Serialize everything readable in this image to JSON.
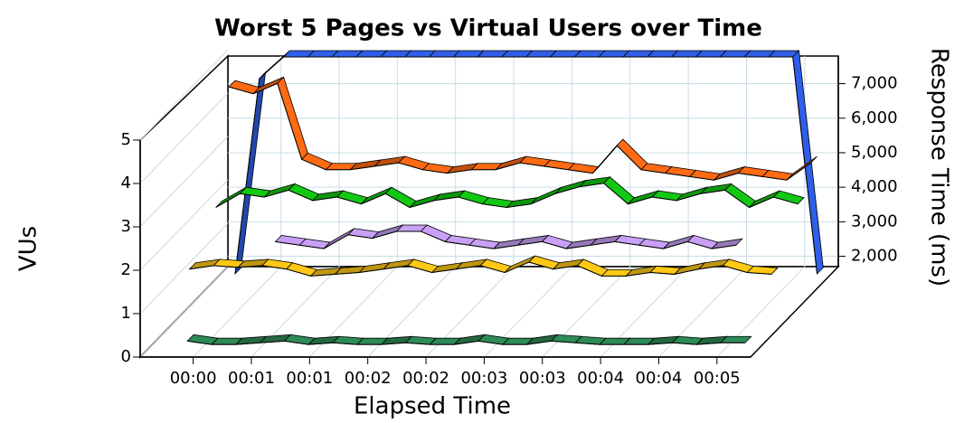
{
  "chart_data": {
    "type": "line",
    "title": "Worst 5 Pages vs Virtual Users over Time",
    "xlabel": "Elapsed Time",
    "ylabel": "VUs",
    "y2label": "Response Time (ms)",
    "x": [
      -20,
      -7.5,
      5,
      17.5,
      30,
      42.5,
      55,
      67.5,
      80,
      92.5,
      105,
      117.5,
      130,
      142.5,
      155,
      167.5,
      180,
      192.5,
      205,
      217.5,
      230,
      242.5,
      255,
      267.5,
      280
    ],
    "xlim": [
      -25,
      285
    ],
    "xticks": [
      {
        "value": 0,
        "label": "00:00"
      },
      {
        "value": 30,
        "label": "00:01"
      },
      {
        "value": 60,
        "label": "00:01"
      },
      {
        "value": 90,
        "label": "00:02"
      },
      {
        "value": 120,
        "label": "00:02"
      },
      {
        "value": 150,
        "label": "00:03"
      },
      {
        "value": 180,
        "label": "00:03"
      },
      {
        "value": 210,
        "label": "00:04"
      },
      {
        "value": 240,
        "label": "00:04"
      },
      {
        "value": 270,
        "label": "00:05"
      }
    ],
    "ylim": [
      0,
      5
    ],
    "yticks": [
      0,
      1,
      2,
      3,
      4,
      5
    ],
    "y2lim": [
      1700,
      7800
    ],
    "y2ticks": [
      {
        "value": 2000,
        "label": "2,000"
      },
      {
        "value": 3000,
        "label": "3,000"
      },
      {
        "value": 4000,
        "label": "4,000"
      },
      {
        "value": 5000,
        "label": "5,000"
      },
      {
        "value": 6000,
        "label": "6,000"
      },
      {
        "value": 7000,
        "label": "7,000"
      }
    ],
    "grid": true,
    "series": [
      {
        "color": "#2f5fe8",
        "axis": "y",
        "values": [
          0,
          4.5,
          5,
          5,
          5,
          5,
          5,
          5,
          5,
          5,
          5,
          5,
          5,
          5,
          5,
          5,
          5,
          5,
          5,
          5,
          5,
          5,
          5,
          5,
          0
        ]
      },
      {
        "color": "#ff6a13",
        "axis": "y2",
        "values": [
          7300,
          7100,
          7400,
          5200,
          4900,
          4900,
          5000,
          5100,
          4900,
          4800,
          4900,
          4900,
          5100,
          5000,
          4900,
          4800,
          5600,
          4900,
          4800,
          4700,
          4600,
          4800,
          4700,
          4600,
          5100
        ]
      },
      {
        "color": "#13c813",
        "axis": "y2",
        "values": [
          4200,
          4600,
          4500,
          4700,
          4400,
          4500,
          4300,
          4600,
          4200,
          4400,
          4500,
          4300,
          4200,
          4300,
          4600,
          4800,
          4900,
          4300,
          4500,
          4400,
          4600,
          4700,
          4200,
          4500,
          4300
        ]
      },
      {
        "color": "#c8a0f5",
        "axis": "y2",
        "values": [
          null,
          null,
          null,
          3600,
          3500,
          3400,
          3800,
          3700,
          3900,
          3900,
          3600,
          3500,
          3400,
          3500,
          3600,
          3400,
          3500,
          3600,
          3500,
          3400,
          3600,
          3400,
          3500,
          null,
          null
        ]
      },
      {
        "color": "#ffc814",
        "axis": "y2",
        "values": [
          3200,
          3300,
          3250,
          3300,
          3200,
          3000,
          3050,
          3100,
          3200,
          3300,
          3100,
          3200,
          3300,
          3100,
          3400,
          3200,
          3300,
          3000,
          3000,
          3100,
          3050,
          3200,
          3300,
          3100,
          3050
        ]
      },
      {
        "color": "#2e8b57",
        "axis": "y2",
        "values": [
          null,
          1900,
          1800,
          1800,
          1850,
          1900,
          1800,
          1850,
          1800,
          1800,
          1850,
          1800,
          1800,
          1900,
          1800,
          1800,
          1900,
          1850,
          1800,
          1800,
          1800,
          1850,
          1800,
          1850,
          1850
        ]
      }
    ]
  }
}
